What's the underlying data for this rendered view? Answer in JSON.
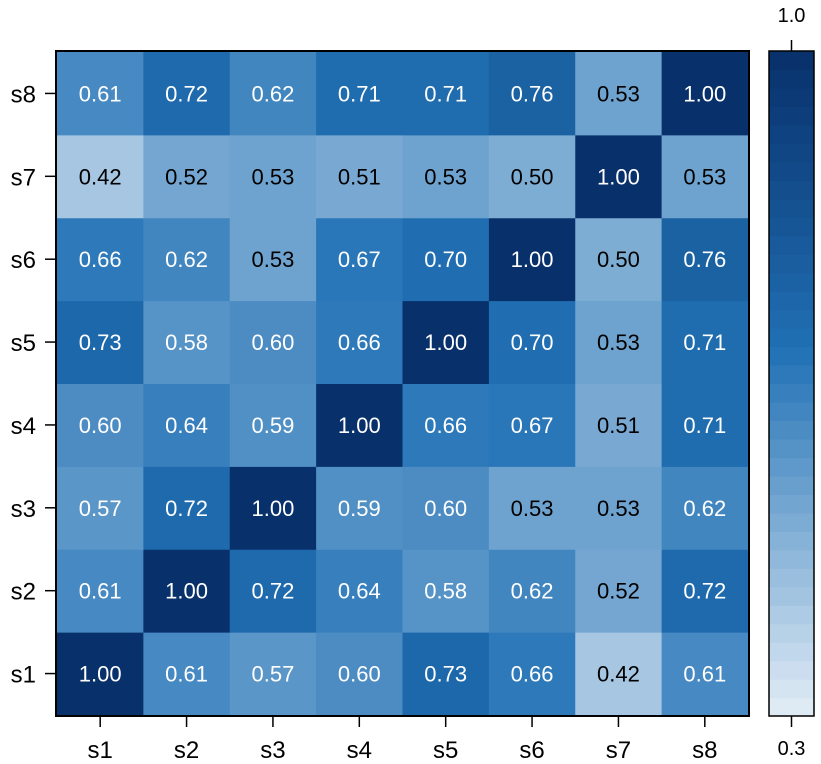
{
  "chart_data": {
    "type": "heatmap",
    "title": "",
    "xlabel": "",
    "ylabel": "",
    "x_categories": [
      "s1",
      "s2",
      "s3",
      "s4",
      "s5",
      "s6",
      "s7",
      "s8"
    ],
    "y_categories": [
      "s1",
      "s2",
      "s3",
      "s4",
      "s5",
      "s6",
      "s7",
      "s8"
    ],
    "values": [
      [
        1.0,
        0.61,
        0.57,
        0.6,
        0.73,
        0.66,
        0.42,
        0.61
      ],
      [
        0.61,
        1.0,
        0.72,
        0.64,
        0.58,
        0.62,
        0.52,
        0.72
      ],
      [
        0.57,
        0.72,
        1.0,
        0.59,
        0.6,
        0.53,
        0.53,
        0.62
      ],
      [
        0.6,
        0.64,
        0.59,
        1.0,
        0.66,
        0.67,
        0.51,
        0.71
      ],
      [
        0.73,
        0.58,
        0.6,
        0.66,
        1.0,
        0.7,
        0.53,
        0.71
      ],
      [
        0.66,
        0.62,
        0.53,
        0.67,
        0.7,
        1.0,
        0.5,
        0.76
      ],
      [
        0.42,
        0.52,
        0.53,
        0.51,
        0.53,
        0.5,
        1.0,
        0.53
      ],
      [
        0.61,
        0.72,
        0.62,
        0.71,
        0.71,
        0.76,
        0.53,
        1.0
      ]
    ],
    "value_labels": [
      [
        "1.00",
        "0.61",
        "0.57",
        "0.60",
        "0.73",
        "0.66",
        "0.42",
        "0.61"
      ],
      [
        "0.61",
        "1.00",
        "0.72",
        "0.64",
        "0.58",
        "0.62",
        "0.52",
        "0.72"
      ],
      [
        "0.57",
        "0.72",
        "1.00",
        "0.59",
        "0.60",
        "0.53",
        "0.53",
        "0.62"
      ],
      [
        "0.60",
        "0.64",
        "0.59",
        "1.00",
        "0.66",
        "0.67",
        "0.51",
        "0.71"
      ],
      [
        "0.73",
        "0.58",
        "0.60",
        "0.66",
        "1.00",
        "0.70",
        "0.53",
        "0.71"
      ],
      [
        "0.66",
        "0.62",
        "0.53",
        "0.67",
        "0.70",
        "1.00",
        "0.50",
        "0.76"
      ],
      [
        "0.42",
        "0.52",
        "0.53",
        "0.51",
        "0.53",
        "0.50",
        "1.00",
        "0.53"
      ],
      [
        "0.61",
        "0.72",
        "0.62",
        "0.71",
        "0.71",
        "0.76",
        "0.53",
        "1.00"
      ]
    ],
    "colorbar": {
      "min": 0.3,
      "max": 1.0,
      "min_label": "0.3",
      "max_label": "1.0",
      "colors": [
        "#e3edf6",
        "#08306b"
      ]
    },
    "grid": false,
    "legend": "right"
  }
}
